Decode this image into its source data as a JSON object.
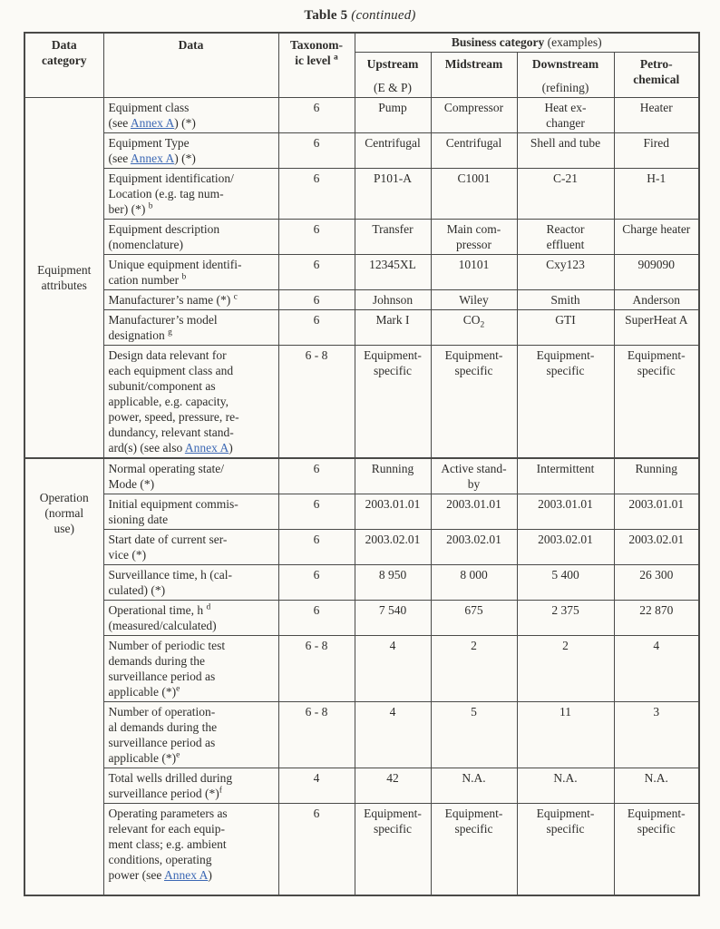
{
  "title": {
    "main": "Table 5",
    "continued": "(continued)"
  },
  "colors": {
    "page_bg": "#fbfaf6",
    "text": "#2e2d2b",
    "border": "#4a4a48",
    "link": "#3c68b4"
  },
  "table": {
    "headers": {
      "data_category": [
        [
          "Data"
        ],
        [
          "category"
        ]
      ],
      "data": [
        [
          "Data"
        ]
      ],
      "taxonomic_level": [
        [
          "Taxonom-"
        ],
        [
          "ic level ",
          {
            "sup": "a"
          }
        ]
      ],
      "business_category": [
        [
          "Business category ",
          {
            "plain": "(examples)"
          }
        ]
      ],
      "business_columns": [
        {
          "name": [
            [
              "Upstream"
            ]
          ],
          "sub": "(E & P)"
        },
        {
          "name": [
            [
              "Midstream"
            ]
          ],
          "sub": ""
        },
        {
          "name": [
            [
              "Downstream"
            ]
          ],
          "sub": "(refining)"
        },
        {
          "name": [
            [
              "Petro-"
            ],
            [
              "chemical"
            ]
          ],
          "sub": ""
        }
      ]
    },
    "sections": [
      {
        "category": [
          [
            "Equipment"
          ],
          [
            "attributes"
          ]
        ],
        "rows": [
          {
            "data": [
              [
                "Equipment class"
              ],
              [
                "(see ",
                {
                  "link": "Annex A"
                },
                ") (*)"
              ]
            ],
            "level": "6",
            "values": [
              "Pump",
              "Compressor",
              [
                [
                  "Heat ex-"
                ],
                [
                  "changer"
                ]
              ],
              "Heater"
            ]
          },
          {
            "data": [
              [
                "Equipment Type"
              ],
              [
                "(see ",
                {
                  "link": "Annex A"
                },
                ") (*)"
              ]
            ],
            "level": "6",
            "values": [
              "Centrifugal",
              "Centrifugal",
              "Shell and tube",
              "Fired"
            ]
          },
          {
            "data": [
              [
                "Equipment identification/"
              ],
              [
                "Location (e.g. tag num-"
              ],
              [
                "ber) (*) ",
                {
                  "sup": "b"
                }
              ]
            ],
            "level": "6",
            "values": [
              "P101-A",
              "C1001",
              "C-21",
              "H-1"
            ]
          },
          {
            "data": [
              [
                "Equipment description"
              ],
              [
                "(nomenclature)"
              ]
            ],
            "level": "6",
            "values": [
              "Transfer",
              [
                [
                  "Main com-"
                ],
                [
                  "pressor"
                ]
              ],
              [
                [
                  "Reactor"
                ],
                [
                  "effluent"
                ]
              ],
              "Charge heater"
            ]
          },
          {
            "data": [
              [
                "Unique equipment identifi-"
              ],
              [
                "cation number ",
                {
                  "sup": "b"
                }
              ]
            ],
            "level": "6",
            "values": [
              "12345XL",
              "10101",
              "Cxy123",
              "909090"
            ]
          },
          {
            "data": [
              [
                "Manufacturer’s name (*) ",
                {
                  "sup": "c"
                }
              ]
            ],
            "level": "6",
            "values": [
              "Johnson",
              "Wiley",
              "Smith",
              "Anderson"
            ]
          },
          {
            "data": [
              [
                "Manufacturer’s model"
              ],
              [
                "designation ",
                {
                  "sup": "g"
                }
              ]
            ],
            "level": "6",
            "values": [
              "Mark I",
              [
                [
                  "CO",
                  {
                    "sub": "2"
                  }
                ]
              ],
              "GTI",
              "SuperHeat A"
            ]
          },
          {
            "data": [
              [
                "Design data relevant for"
              ],
              [
                "each equipment class and"
              ],
              [
                "subunit/component as"
              ],
              [
                "applicable, e.g. capacity,"
              ],
              [
                "power, speed, pressure, re-"
              ],
              [
                "dundancy, relevant stand-"
              ],
              [
                "ard(s) (see also ",
                {
                  "link": "Annex A"
                },
                ")"
              ]
            ],
            "level": "6 - 8",
            "values": [
              [
                [
                  "Equipment-"
                ],
                [
                  "specific"
                ]
              ],
              [
                [
                  "Equipment-"
                ],
                [
                  "specific"
                ]
              ],
              [
                [
                  "Equipment-"
                ],
                [
                  "specific"
                ]
              ],
              [
                [
                  "Equipment-"
                ],
                [
                  "specific"
                ]
              ]
            ]
          }
        ]
      },
      {
        "category": [
          [
            "Operation"
          ],
          [
            "(normal"
          ],
          [
            "use)"
          ]
        ],
        "rows": [
          {
            "data": [
              [
                "Normal operating state/"
              ],
              [
                "Mode (*)"
              ]
            ],
            "level": "6",
            "values": [
              "Running",
              [
                [
                  "Active stand-"
                ],
                [
                  "by"
                ]
              ],
              "Intermittent",
              "Running"
            ]
          },
          {
            "data": [
              [
                "Initial equipment commis-"
              ],
              [
                "sioning date"
              ]
            ],
            "level": "6",
            "values": [
              "2003.01.01",
              "2003.01.01",
              "2003.01.01",
              "2003.01.01"
            ]
          },
          {
            "data": [
              [
                "Start date of current ser-"
              ],
              [
                "vice (*)"
              ]
            ],
            "level": "6",
            "values": [
              "2003.02.01",
              "2003.02.01",
              "2003.02.01",
              "2003.02.01"
            ]
          },
          {
            "data": [
              [
                "Surveillance time, h (cal-"
              ],
              [
                "culated) (*)"
              ]
            ],
            "level": "6",
            "values": [
              "8 950",
              "8 000",
              "5 400",
              "26 300"
            ]
          },
          {
            "data": [
              [
                "Operational time, h ",
                {
                  "sup": "d"
                }
              ],
              [
                "(measured/calculated)"
              ]
            ],
            "level": "6",
            "values": [
              "7 540",
              "675",
              "2 375",
              "22 870"
            ]
          },
          {
            "data": [
              [
                "Number of periodic test"
              ],
              [
                "demands during the"
              ],
              [
                "surveillance period as"
              ],
              [
                "applicable (*)",
                {
                  "sup": "e"
                }
              ]
            ],
            "level": "6 - 8",
            "values": [
              "4",
              "2",
              "2",
              "4"
            ]
          },
          {
            "data": [
              [
                "Number of operation-"
              ],
              [
                "al demands during the"
              ],
              [
                "surveillance period as"
              ],
              [
                "applicable (*)",
                {
                  "sup": "e"
                }
              ]
            ],
            "level": "6 - 8",
            "values": [
              "4",
              "5",
              "11",
              "3"
            ]
          },
          {
            "data": [
              [
                "Total wells drilled during"
              ],
              [
                "surveillance period (*)",
                {
                  "sup": "f"
                }
              ]
            ],
            "level": "4",
            "values": [
              "42",
              "N.A.",
              "N.A.",
              "N.A."
            ]
          },
          {
            "data": [
              [
                "Operating parameters as"
              ],
              [
                "relevant for each equip-"
              ],
              [
                "ment class; e.g. ambient"
              ],
              [
                "conditions, operating"
              ],
              [
                "power (see ",
                {
                  "link": "Annex A"
                },
                ")"
              ]
            ],
            "level": "6",
            "values": [
              [
                [
                  "Equipment-"
                ],
                [
                  "specific"
                ]
              ],
              [
                [
                  "Equipment-"
                ],
                [
                  "specific"
                ]
              ],
              [
                [
                  "Equipment-"
                ],
                [
                  "specific"
                ]
              ],
              [
                [
                  "Equipment-"
                ],
                [
                  "specific"
                ]
              ]
            ]
          }
        ]
      }
    ]
  }
}
